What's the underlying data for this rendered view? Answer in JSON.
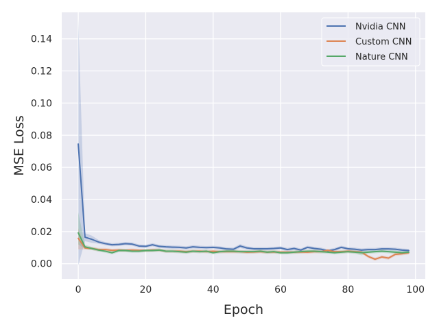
{
  "chart_data": {
    "type": "line",
    "title": "",
    "xlabel": "Epoch",
    "ylabel": "MSE Loss",
    "xlim": [
      -4.9,
      102.9
    ],
    "ylim": [
      -0.0095,
      0.1565
    ],
    "xticks": [
      0,
      20,
      40,
      60,
      80,
      100
    ],
    "xtick_labels": [
      "0",
      "20",
      "40",
      "60",
      "80",
      "100"
    ],
    "yticks": [
      0.0,
      0.02,
      0.04,
      0.06,
      0.08,
      0.1,
      0.12,
      0.14
    ],
    "ytick_labels": [
      "0.00",
      "0.02",
      "0.04",
      "0.06",
      "0.08",
      "0.10",
      "0.12",
      "0.14"
    ],
    "grid": true,
    "legend_position": "top-right",
    "x": [
      0,
      2,
      4,
      6,
      8,
      10,
      12,
      14,
      16,
      18,
      20,
      22,
      24,
      26,
      28,
      30,
      32,
      34,
      36,
      38,
      40,
      42,
      44,
      46,
      48,
      50,
      52,
      54,
      56,
      58,
      60,
      62,
      64,
      66,
      68,
      70,
      72,
      74,
      76,
      78,
      80,
      82,
      84,
      86,
      88,
      90,
      92,
      94,
      96,
      98
    ],
    "series": [
      {
        "name": "Nvidia CNN",
        "color": "#4c72b0",
        "values": [
          0.0745,
          0.0165,
          0.0152,
          0.0135,
          0.0125,
          0.0118,
          0.012,
          0.0125,
          0.0122,
          0.011,
          0.0108,
          0.0118,
          0.0108,
          0.0105,
          0.0103,
          0.0102,
          0.0098,
          0.0105,
          0.0102,
          0.01,
          0.0102,
          0.0098,
          0.0092,
          0.009,
          0.011,
          0.0098,
          0.0093,
          0.0093,
          0.0093,
          0.0095,
          0.0098,
          0.0088,
          0.0095,
          0.0085,
          0.0102,
          0.0095,
          0.009,
          0.008,
          0.0088,
          0.0102,
          0.0093,
          0.009,
          0.0085,
          0.0088,
          0.0088,
          0.0092,
          0.0092,
          0.009,
          0.0085,
          0.0082
        ],
        "ci_low": [
          -0.001,
          0.014,
          0.013,
          0.0125,
          0.0115,
          0.0108,
          0.011,
          0.0115,
          0.0112,
          0.01,
          0.0098,
          0.0108,
          0.0098,
          0.0095,
          0.0093,
          0.0092,
          0.0088,
          0.0095,
          0.0092,
          0.009,
          0.0092,
          0.0088,
          0.0082,
          0.008,
          0.0098,
          0.0088,
          0.0083,
          0.0083,
          0.0083,
          0.0085,
          0.0088,
          0.0078,
          0.0085,
          0.0075,
          0.0092,
          0.0085,
          0.008,
          0.007,
          0.0078,
          0.0092,
          0.0083,
          0.008,
          0.0075,
          0.0078,
          0.0078,
          0.0082,
          0.0082,
          0.008,
          0.0075,
          0.0072
        ],
        "ci_high": [
          0.152,
          0.019,
          0.0175,
          0.0148,
          0.0135,
          0.0128,
          0.013,
          0.0135,
          0.0132,
          0.012,
          0.0118,
          0.0128,
          0.0118,
          0.0115,
          0.0113,
          0.0112,
          0.0108,
          0.0115,
          0.0112,
          0.011,
          0.0112,
          0.0108,
          0.0102,
          0.01,
          0.0122,
          0.0108,
          0.0103,
          0.0103,
          0.0103,
          0.0105,
          0.0108,
          0.0098,
          0.0105,
          0.0095,
          0.0112,
          0.0105,
          0.01,
          0.009,
          0.0098,
          0.0112,
          0.0103,
          0.01,
          0.0095,
          0.0098,
          0.0098,
          0.0102,
          0.0102,
          0.01,
          0.0095,
          0.0092
        ]
      },
      {
        "name": "Custom CNN",
        "color": "#dd8452",
        "values": [
          0.0158,
          0.0098,
          0.0095,
          0.0088,
          0.0088,
          0.0083,
          0.0085,
          0.0083,
          0.0085,
          0.0083,
          0.0082,
          0.0085,
          0.0085,
          0.0078,
          0.0078,
          0.0078,
          0.0075,
          0.0078,
          0.0078,
          0.0075,
          0.0078,
          0.0075,
          0.0075,
          0.0075,
          0.0075,
          0.0072,
          0.0073,
          0.0075,
          0.0072,
          0.0073,
          0.0072,
          0.0072,
          0.0072,
          0.0073,
          0.0072,
          0.0075,
          0.0075,
          0.0083,
          0.0075,
          0.0075,
          0.0078,
          0.0075,
          0.0072,
          0.0045,
          0.0028,
          0.0042,
          0.0035,
          0.0058,
          0.0062,
          0.0068
        ],
        "ci_low": [
          0.009,
          0.0088,
          0.0085,
          0.0078,
          0.0078,
          0.0073,
          0.0075,
          0.0073,
          0.0075,
          0.0073,
          0.0072,
          0.0075,
          0.0075,
          0.0068,
          0.0068,
          0.0068,
          0.0065,
          0.0068,
          0.0068,
          0.0065,
          0.0068,
          0.0065,
          0.0065,
          0.0065,
          0.0065,
          0.0062,
          0.0063,
          0.0065,
          0.0062,
          0.0063,
          0.0062,
          0.0062,
          0.0062,
          0.0063,
          0.0062,
          0.0065,
          0.0065,
          0.0073,
          0.0065,
          0.0065,
          0.0068,
          0.0065,
          0.0062,
          0.0035,
          0.0018,
          0.0032,
          0.0025,
          0.0048,
          0.0052,
          0.0058
        ],
        "ci_high": [
          0.022,
          0.0108,
          0.0105,
          0.0098,
          0.0098,
          0.0093,
          0.0095,
          0.0093,
          0.0095,
          0.0093,
          0.0092,
          0.0095,
          0.0095,
          0.0088,
          0.0088,
          0.0088,
          0.0085,
          0.0088,
          0.0088,
          0.0085,
          0.0088,
          0.0085,
          0.0085,
          0.0085,
          0.0085,
          0.0082,
          0.0083,
          0.0085,
          0.0082,
          0.0083,
          0.0082,
          0.0082,
          0.0082,
          0.0083,
          0.0082,
          0.0085,
          0.0085,
          0.0093,
          0.0085,
          0.0085,
          0.0088,
          0.0085,
          0.0082,
          0.0055,
          0.0038,
          0.0052,
          0.0045,
          0.0068,
          0.0072,
          0.0078
        ]
      },
      {
        "name": "Nature CNN",
        "color": "#55a868",
        "values": [
          0.0192,
          0.0105,
          0.0095,
          0.0085,
          0.0078,
          0.0068,
          0.0082,
          0.0082,
          0.0078,
          0.0078,
          0.0082,
          0.0082,
          0.0085,
          0.0078,
          0.0078,
          0.0075,
          0.0072,
          0.0078,
          0.0075,
          0.0078,
          0.0068,
          0.0075,
          0.0078,
          0.0078,
          0.0075,
          0.0075,
          0.0075,
          0.0078,
          0.0072,
          0.0075,
          0.0068,
          0.0068,
          0.0072,
          0.0075,
          0.0078,
          0.0078,
          0.0075,
          0.0072,
          0.0068,
          0.0072,
          0.0075,
          0.0072,
          0.0068,
          0.0072,
          0.0075,
          0.0078,
          0.0075,
          0.0072,
          0.0068,
          0.0072
        ],
        "ci_low": [
          0.012,
          0.0092,
          0.0085,
          0.0075,
          0.0068,
          0.0058,
          0.0072,
          0.0072,
          0.0068,
          0.0068,
          0.0072,
          0.0072,
          0.0075,
          0.0068,
          0.0068,
          0.0065,
          0.0062,
          0.0068,
          0.0065,
          0.0068,
          0.0058,
          0.0065,
          0.0068,
          0.0068,
          0.0065,
          0.0065,
          0.0065,
          0.0068,
          0.0062,
          0.0065,
          0.0058,
          0.0058,
          0.0062,
          0.0065,
          0.0068,
          0.0068,
          0.0065,
          0.0062,
          0.0058,
          0.0062,
          0.0065,
          0.0062,
          0.0052,
          0.0062,
          0.0065,
          0.0068,
          0.0065,
          0.0062,
          0.0058,
          0.0062
        ],
        "ci_high": [
          0.032,
          0.0118,
          0.0105,
          0.0095,
          0.0088,
          0.0078,
          0.0092,
          0.0092,
          0.0088,
          0.0088,
          0.0092,
          0.0092,
          0.0095,
          0.0088,
          0.0088,
          0.0085,
          0.0082,
          0.0088,
          0.0085,
          0.0088,
          0.0078,
          0.0085,
          0.0088,
          0.0088,
          0.0085,
          0.0085,
          0.0085,
          0.0088,
          0.0082,
          0.0085,
          0.0078,
          0.0078,
          0.0082,
          0.0085,
          0.0088,
          0.0088,
          0.0085,
          0.0082,
          0.0078,
          0.0082,
          0.0085,
          0.0082,
          0.0078,
          0.0082,
          0.0085,
          0.0088,
          0.0085,
          0.0082,
          0.0078,
          0.0082
        ]
      }
    ]
  }
}
